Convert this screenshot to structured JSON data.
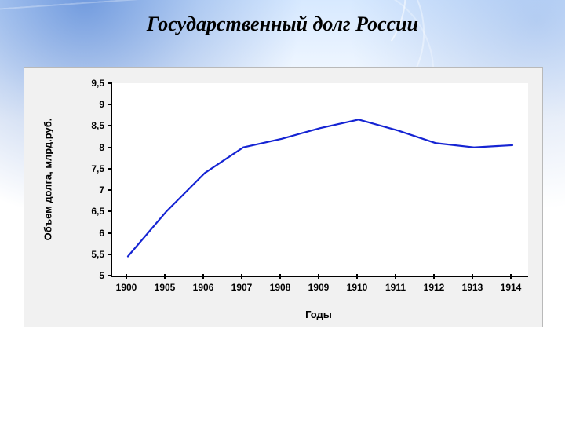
{
  "title": "Государственный долг России",
  "chart": {
    "type": "line",
    "background_color": "#f1f1f1",
    "plot_background_color": "#ffffff",
    "axis_color": "#000000",
    "grid": false,
    "line_color": "#1524d3",
    "line_width": 2.2,
    "marker": "none",
    "x": {
      "label": "Годы",
      "categories": [
        "1900",
        "1905",
        "1906",
        "1907",
        "1908",
        "1909",
        "1910",
        "1911",
        "1912",
        "1913",
        "1914"
      ]
    },
    "y": {
      "label": "Объем долга, млрд.руб.",
      "min": 5,
      "max": 9.5,
      "step": 0.5,
      "ticks": [
        "5",
        "5,5",
        "6",
        "6,5",
        "7",
        "7,5",
        "8",
        "8,5",
        "9",
        "9,5"
      ]
    },
    "values": [
      5.45,
      6.5,
      7.4,
      8.0,
      8.2,
      8.45,
      8.65,
      8.4,
      8.1,
      8.0,
      8.05
    ],
    "title_fontsize": 26,
    "tick_fontsize": 12,
    "label_fontsize": 13
  }
}
